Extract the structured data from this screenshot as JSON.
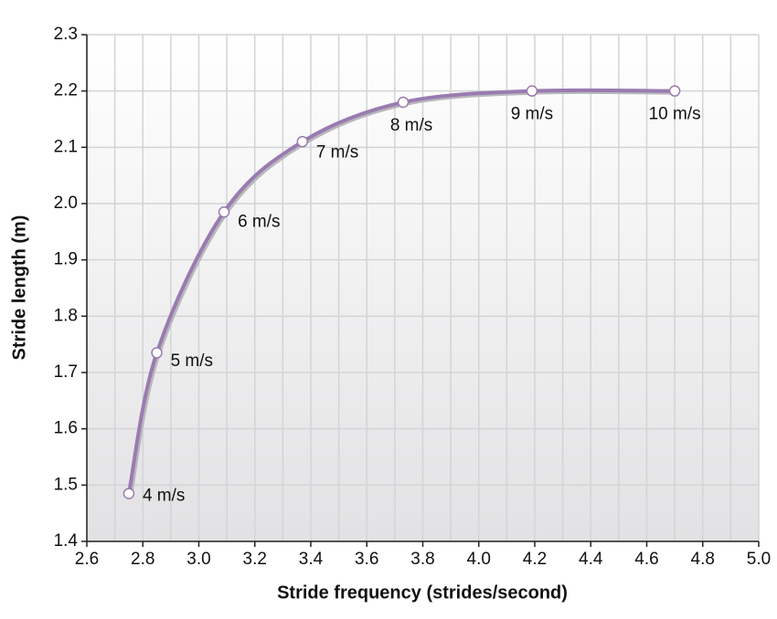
{
  "chart_data": {
    "type": "line",
    "xlabel": "Stride frequency (strides/second)",
    "ylabel": "Stride length (m)",
    "x": [
      2.75,
      2.85,
      3.09,
      3.37,
      3.73,
      4.19,
      4.7
    ],
    "series": [
      {
        "color": "#9a7bb0",
        "values": [
          1.485,
          1.735,
          1.985,
          2.11,
          2.18,
          2.2,
          2.2
        ],
        "point_labels": [
          "4 m/s",
          "5 m/s",
          "6 m/s",
          "7 m/s",
          "8 m/s",
          "9 m/s",
          "10 m/s"
        ]
      }
    ],
    "xlim": [
      2.6,
      5.0
    ],
    "xticks": [
      2.6,
      2.8,
      {
        "value": 3.0,
        "label": "3.0"
      },
      3.2,
      3.4,
      3.6,
      3.8,
      {
        "value": 4.0,
        "label": "4.0"
      },
      4.2,
      4.4,
      4.6,
      4.8,
      {
        "value": 5.0,
        "label": "5.0"
      }
    ],
    "x_minor_ticks": [
      2.7,
      2.9,
      3.1,
      3.3,
      3.5,
      3.7,
      3.9,
      4.1,
      4.3,
      4.5,
      4.7,
      4.9
    ],
    "ylim": [
      1.4,
      2.3
    ],
    "yticks": [
      1.4,
      1.5,
      1.6,
      1.7,
      1.8,
      1.9,
      {
        "value": 2.0,
        "label": "2.0"
      },
      2.1,
      2.2,
      2.3
    ],
    "grid": true
  }
}
